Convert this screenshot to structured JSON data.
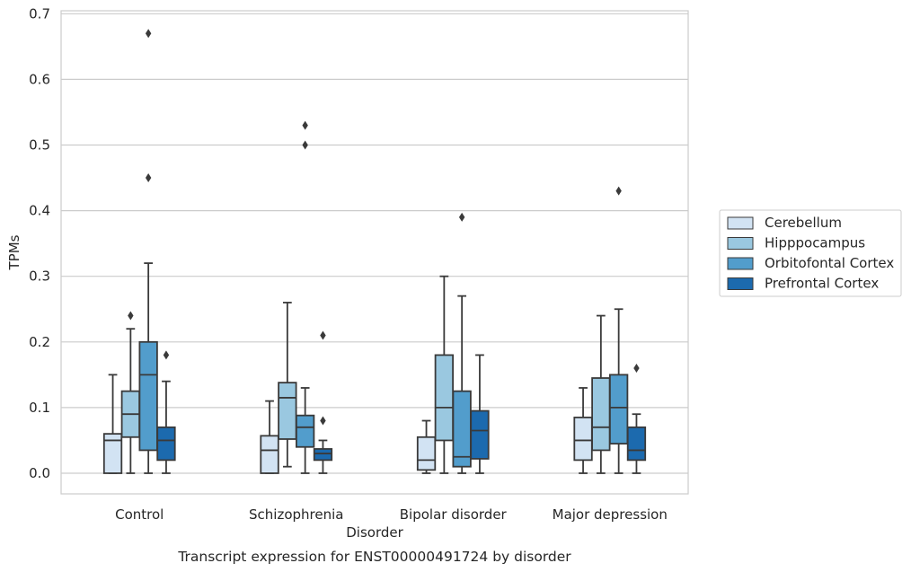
{
  "chart_data": {
    "type": "boxplot",
    "caption": "Transcript expression for ENST00000491724 by disorder",
    "xlabel": "Disorder",
    "ylabel": "TPMs",
    "ylim": [
      -0.032,
      0.705
    ],
    "yticks": [
      0.0,
      0.1,
      0.2,
      0.3,
      0.4,
      0.5,
      0.6,
      0.7
    ],
    "ytick_labels": [
      "0.0",
      "0.1",
      "0.2",
      "0.3",
      "0.4",
      "0.5",
      "0.6",
      "0.7"
    ],
    "grid": "horizontal",
    "legend_position": "right",
    "categories": [
      "Control",
      "Schizophrenia",
      "Bipolar disorder",
      "Major depression"
    ],
    "series": [
      {
        "name": "Cerebellum",
        "color": "#d2e3f3",
        "boxes": [
          {
            "whisker_low": 0.0,
            "q1": 0.0,
            "median": 0.05,
            "q3": 0.06,
            "whisker_high": 0.15,
            "outliers": []
          },
          {
            "whisker_low": 0.0,
            "q1": 0.0,
            "median": 0.035,
            "q3": 0.057,
            "whisker_high": 0.11,
            "outliers": []
          },
          {
            "whisker_low": 0.0,
            "q1": 0.005,
            "median": 0.02,
            "q3": 0.055,
            "whisker_high": 0.08,
            "outliers": []
          },
          {
            "whisker_low": 0.0,
            "q1": 0.02,
            "median": 0.05,
            "q3": 0.085,
            "whisker_high": 0.13,
            "outliers": []
          }
        ]
      },
      {
        "name": "Hipppocampus",
        "color": "#9ac8e0",
        "boxes": [
          {
            "whisker_low": 0.0,
            "q1": 0.055,
            "median": 0.09,
            "q3": 0.125,
            "whisker_high": 0.22,
            "outliers": [
              0.24
            ]
          },
          {
            "whisker_low": 0.01,
            "q1": 0.052,
            "median": 0.115,
            "q3": 0.138,
            "whisker_high": 0.26,
            "outliers": []
          },
          {
            "whisker_low": 0.0,
            "q1": 0.05,
            "median": 0.1,
            "q3": 0.18,
            "whisker_high": 0.3,
            "outliers": []
          },
          {
            "whisker_low": 0.0,
            "q1": 0.035,
            "median": 0.07,
            "q3": 0.145,
            "whisker_high": 0.24,
            "outliers": []
          }
        ]
      },
      {
        "name": "Orbitofontal Cortex",
        "color": "#529dcc",
        "boxes": [
          {
            "whisker_low": 0.0,
            "q1": 0.035,
            "median": 0.15,
            "q3": 0.2,
            "whisker_high": 0.32,
            "outliers": [
              0.45,
              0.67
            ]
          },
          {
            "whisker_low": 0.0,
            "q1": 0.04,
            "median": 0.07,
            "q3": 0.088,
            "whisker_high": 0.13,
            "outliers": [
              0.5,
              0.53
            ]
          },
          {
            "whisker_low": 0.0,
            "q1": 0.01,
            "median": 0.025,
            "q3": 0.125,
            "whisker_high": 0.27,
            "outliers": [
              0.39
            ]
          },
          {
            "whisker_low": 0.0,
            "q1": 0.045,
            "median": 0.1,
            "q3": 0.15,
            "whisker_high": 0.25,
            "outliers": [
              0.43
            ]
          }
        ]
      },
      {
        "name": "Prefrontal Cortex",
        "color": "#1c6aae",
        "boxes": [
          {
            "whisker_low": 0.0,
            "q1": 0.02,
            "median": 0.05,
            "q3": 0.07,
            "whisker_high": 0.14,
            "outliers": [
              0.18
            ]
          },
          {
            "whisker_low": 0.0,
            "q1": 0.02,
            "median": 0.03,
            "q3": 0.037,
            "whisker_high": 0.05,
            "outliers": [
              0.08,
              0.21
            ]
          },
          {
            "whisker_low": 0.0,
            "q1": 0.022,
            "median": 0.065,
            "q3": 0.095,
            "whisker_high": 0.18,
            "outliers": []
          },
          {
            "whisker_low": 0.0,
            "q1": 0.02,
            "median": 0.035,
            "q3": 0.07,
            "whisker_high": 0.09,
            "outliers": [
              0.16
            ]
          }
        ]
      }
    ]
  }
}
